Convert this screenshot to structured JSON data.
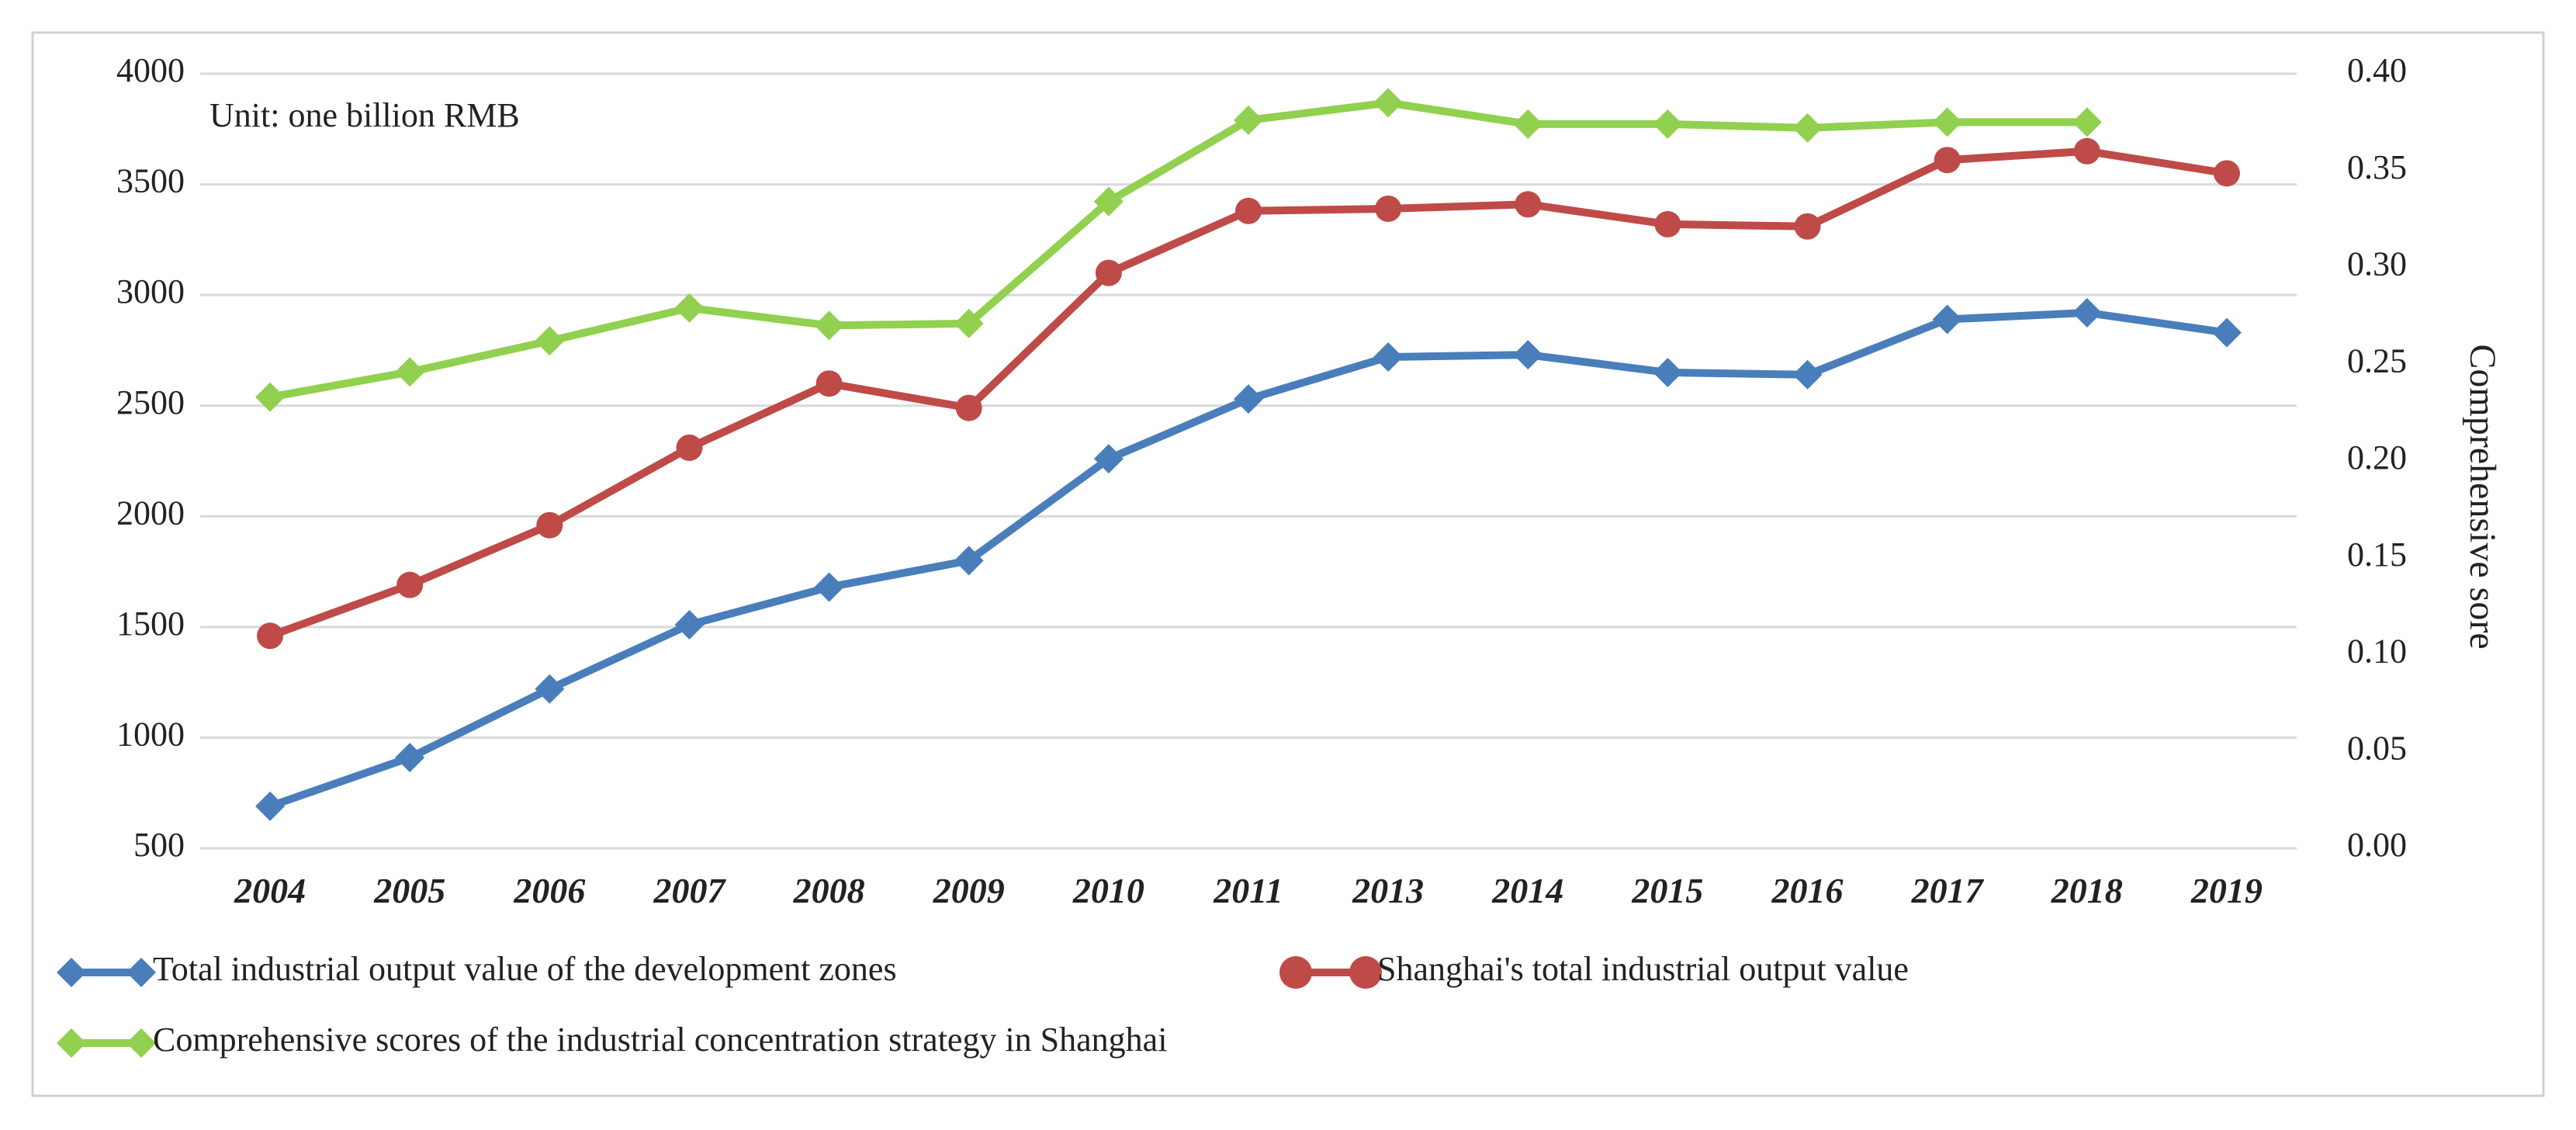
{
  "chart_data": {
    "type": "line",
    "title": "",
    "unit_label": "Unit: one billion RMB",
    "x": [
      "2004",
      "2005",
      "2006",
      "2007",
      "2008",
      "2009",
      "2010",
      "2011",
      "2013",
      "2014",
      "2015",
      "2016",
      "2017",
      "2018",
      "2019"
    ],
    "y_left": {
      "label": "",
      "min": 500,
      "max": 4000,
      "ticks": [
        "500",
        "1000",
        "1500",
        "2000",
        "2500",
        "3000",
        "3500",
        "4000"
      ]
    },
    "y_right": {
      "label": "Comprehensive sore",
      "min": 0.0,
      "max": 0.4,
      "ticks": [
        "0.00",
        "0.05",
        "0.10",
        "0.15",
        "0.20",
        "0.25",
        "0.30",
        "0.35",
        "0.40"
      ]
    },
    "grid": "horizontal",
    "series": [
      {
        "name": "Total industrial output value of the development zones",
        "axis": "left",
        "color": "#4a7ebb",
        "marker": "diamond",
        "values": [
          690,
          910,
          1220,
          1510,
          1680,
          1800,
          2260,
          2530,
          2720,
          2730,
          2650,
          2640,
          2890,
          2920,
          2830
        ]
      },
      {
        "name": "Shanghai's total industrial output value",
        "axis": "left",
        "color": "#be4b48",
        "marker": "circle",
        "values": [
          1460,
          1690,
          1960,
          2310,
          2600,
          2490,
          3100,
          3380,
          3390,
          3410,
          3320,
          3310,
          3610,
          3650,
          3550
        ]
      },
      {
        "name": "Comprehensive scores of the industrial concentration strategy in Shanghai",
        "axis": "right",
        "color": "#92d050",
        "marker": "diamond",
        "values": [
          0.233,
          0.246,
          0.262,
          0.279,
          0.27,
          0.271,
          0.334,
          0.376,
          0.385,
          0.374,
          0.374,
          0.372,
          0.375,
          0.375,
          null
        ]
      }
    ]
  }
}
